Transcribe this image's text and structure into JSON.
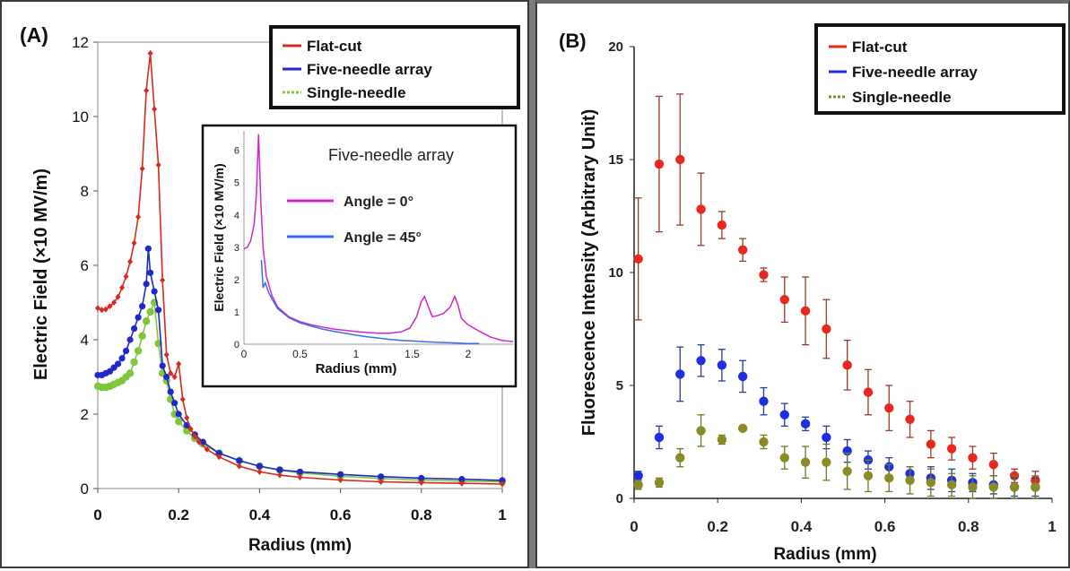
{
  "chart_data": [
    {
      "type": "line",
      "panel_label": "(A)",
      "xlabel": "Radius (mm)",
      "ylabel": "Electric Field (×10 MV/m)",
      "xlim": [
        0,
        1
      ],
      "ylim": [
        0,
        12
      ],
      "x_ticks": [
        "0",
        "0.2",
        "0.4",
        "0.6",
        "0.8",
        "1"
      ],
      "y_ticks": [
        "0",
        "2",
        "4",
        "6",
        "8",
        "10",
        "12"
      ],
      "legend_position": "top-right",
      "series": [
        {
          "name": "Flat-cut",
          "color": "#d42a20",
          "marker": "diamond",
          "points": [
            [
              0,
              4.85
            ],
            [
              0.01,
              4.8
            ],
            [
              0.02,
              4.82
            ],
            [
              0.03,
              4.9
            ],
            [
              0.04,
              5.0
            ],
            [
              0.05,
              5.15
            ],
            [
              0.06,
              5.4
            ],
            [
              0.07,
              5.7
            ],
            [
              0.08,
              6.1
            ],
            [
              0.09,
              6.6
            ],
            [
              0.1,
              7.3
            ],
            [
              0.11,
              8.6
            ],
            [
              0.12,
              10.7
            ],
            [
              0.13,
              11.7
            ],
            [
              0.14,
              10.2
            ],
            [
              0.15,
              8.7
            ],
            [
              0.16,
              5.6
            ],
            [
              0.17,
              3.6
            ],
            [
              0.18,
              3.1
            ],
            [
              0.19,
              3.0
            ],
            [
              0.2,
              3.35
            ],
            [
              0.21,
              2.4
            ],
            [
              0.22,
              1.9
            ],
            [
              0.23,
              1.6
            ],
            [
              0.24,
              1.4
            ],
            [
              0.25,
              1.25
            ],
            [
              0.27,
              1.05
            ],
            [
              0.3,
              0.85
            ],
            [
              0.35,
              0.6
            ],
            [
              0.4,
              0.45
            ],
            [
              0.45,
              0.36
            ],
            [
              0.5,
              0.3
            ],
            [
              0.6,
              0.23
            ],
            [
              0.7,
              0.18
            ],
            [
              0.8,
              0.16
            ],
            [
              0.9,
              0.14
            ],
            [
              1.0,
              0.12
            ]
          ]
        },
        {
          "name": "Five-needle array",
          "color": "#1f28c8",
          "marker": "circle",
          "points": [
            [
              0,
              3.05
            ],
            [
              0.01,
              3.05
            ],
            [
              0.02,
              3.1
            ],
            [
              0.03,
              3.15
            ],
            [
              0.04,
              3.25
            ],
            [
              0.05,
              3.35
            ],
            [
              0.06,
              3.5
            ],
            [
              0.07,
              3.7
            ],
            [
              0.08,
              4.0
            ],
            [
              0.09,
              4.3
            ],
            [
              0.1,
              4.6
            ],
            [
              0.11,
              4.9
            ],
            [
              0.12,
              5.5
            ],
            [
              0.125,
              6.45
            ],
            [
              0.13,
              5.8
            ],
            [
              0.14,
              5.3
            ],
            [
              0.15,
              4.8
            ],
            [
              0.16,
              3.3
            ],
            [
              0.17,
              3.0
            ],
            [
              0.18,
              2.6
            ],
            [
              0.19,
              2.3
            ],
            [
              0.2,
              2.0
            ],
            [
              0.22,
              1.7
            ],
            [
              0.24,
              1.45
            ],
            [
              0.26,
              1.25
            ],
            [
              0.3,
              0.95
            ],
            [
              0.35,
              0.75
            ],
            [
              0.4,
              0.6
            ],
            [
              0.45,
              0.5
            ],
            [
              0.5,
              0.45
            ],
            [
              0.6,
              0.38
            ],
            [
              0.7,
              0.32
            ],
            [
              0.8,
              0.28
            ],
            [
              0.9,
              0.25
            ],
            [
              1.0,
              0.22
            ]
          ]
        },
        {
          "name": "Single-needle",
          "color": "#7fc63a",
          "marker": "circle",
          "points": [
            [
              0,
              2.75
            ],
            [
              0.01,
              2.72
            ],
            [
              0.02,
              2.72
            ],
            [
              0.03,
              2.75
            ],
            [
              0.04,
              2.8
            ],
            [
              0.05,
              2.85
            ],
            [
              0.06,
              2.9
            ],
            [
              0.07,
              3.0
            ],
            [
              0.08,
              3.1
            ],
            [
              0.09,
              3.4
            ],
            [
              0.1,
              3.7
            ],
            [
              0.11,
              4.1
            ],
            [
              0.12,
              4.5
            ],
            [
              0.13,
              4.75
            ],
            [
              0.14,
              5.0
            ],
            [
              0.15,
              3.9
            ],
            [
              0.16,
              3.1
            ],
            [
              0.17,
              2.9
            ],
            [
              0.18,
              2.4
            ],
            [
              0.19,
              2.0
            ],
            [
              0.2,
              1.8
            ],
            [
              0.22,
              1.55
            ],
            [
              0.24,
              1.35
            ],
            [
              0.26,
              1.2
            ],
            [
              0.3,
              0.95
            ],
            [
              0.35,
              0.75
            ],
            [
              0.4,
              0.6
            ],
            [
              0.45,
              0.5
            ],
            [
              0.5,
              0.42
            ],
            [
              0.6,
              0.33
            ],
            [
              0.7,
              0.27
            ],
            [
              0.8,
              0.23
            ],
            [
              0.9,
              0.2
            ],
            [
              1.0,
              0.18
            ]
          ]
        }
      ],
      "inset": {
        "type": "line",
        "title": "Five-needle array",
        "xlabel": "Radius (mm)",
        "ylabel": "Electric Field (×10 MV/m)",
        "xlim": [
          0,
          2.4
        ],
        "ylim": [
          0,
          6.6
        ],
        "x_ticks": [
          "0",
          "0.5",
          "1",
          "1.5",
          "2"
        ],
        "y_ticks": [
          "0",
          "1",
          "2",
          "3",
          "4",
          "5",
          "6"
        ],
        "series": [
          {
            "name": "Angle = 0°",
            "color": "#d028c8",
            "points": [
              [
                0,
                2.95
              ],
              [
                0.03,
                3.0
              ],
              [
                0.06,
                3.2
              ],
              [
                0.09,
                3.7
              ],
              [
                0.11,
                4.6
              ],
              [
                0.13,
                6.5
              ],
              [
                0.15,
                4.4
              ],
              [
                0.17,
                3.0
              ],
              [
                0.2,
                2.1
              ],
              [
                0.25,
                1.5
              ],
              [
                0.3,
                1.15
              ],
              [
                0.4,
                0.85
              ],
              [
                0.5,
                0.7
              ],
              [
                0.6,
                0.6
              ],
              [
                0.7,
                0.53
              ],
              [
                0.8,
                0.47
              ],
              [
                0.9,
                0.43
              ],
              [
                1.0,
                0.39
              ],
              [
                1.1,
                0.36
              ],
              [
                1.2,
                0.34
              ],
              [
                1.3,
                0.34
              ],
              [
                1.4,
                0.38
              ],
              [
                1.48,
                0.5
              ],
              [
                1.54,
                0.85
              ],
              [
                1.58,
                1.3
              ],
              [
                1.61,
                1.48
              ],
              [
                1.64,
                1.2
              ],
              [
                1.68,
                0.85
              ],
              [
                1.72,
                0.88
              ],
              [
                1.78,
                0.95
              ],
              [
                1.84,
                1.15
              ],
              [
                1.88,
                1.48
              ],
              [
                1.91,
                1.2
              ],
              [
                1.94,
                0.8
              ],
              [
                2.0,
                0.6
              ],
              [
                2.1,
                0.4
              ],
              [
                2.2,
                0.22
              ],
              [
                2.3,
                0.12
              ],
              [
                2.4,
                0.08
              ]
            ]
          },
          {
            "name": "Angle = 45°",
            "color": "#3a6ee8",
            "points": [
              [
                0.155,
                2.6
              ],
              [
                0.17,
                1.75
              ],
              [
                0.19,
                1.9
              ],
              [
                0.22,
                1.6
              ],
              [
                0.25,
                1.4
              ],
              [
                0.3,
                1.1
              ],
              [
                0.4,
                0.82
              ],
              [
                0.5,
                0.66
              ],
              [
                0.6,
                0.56
              ],
              [
                0.7,
                0.47
              ],
              [
                0.8,
                0.4
              ],
              [
                0.9,
                0.34
              ],
              [
                1.0,
                0.28
              ],
              [
                1.1,
                0.23
              ],
              [
                1.2,
                0.19
              ],
              [
                1.3,
                0.15
              ],
              [
                1.4,
                0.12
              ],
              [
                1.5,
                0.1
              ],
              [
                1.6,
                0.08
              ],
              [
                1.7,
                0.06
              ],
              [
                1.8,
                0.05
              ],
              [
                1.9,
                0.04
              ],
              [
                2.0,
                0.02
              ],
              [
                2.1,
                0.02
              ]
            ]
          }
        ]
      }
    },
    {
      "type": "scatter",
      "panel_label": "(B)",
      "xlabel": "Radius (mm)",
      "ylabel": "Fluorescence Intensity (Arbitrary Unit)",
      "xlim": [
        0,
        1
      ],
      "ylim": [
        0,
        20
      ],
      "x_ticks": [
        "0",
        "0.2",
        "0.4",
        "0.6",
        "0.8",
        "1"
      ],
      "y_ticks": [
        "0",
        "5",
        "10",
        "15",
        "20"
      ],
      "legend_position": "top-right",
      "series": [
        {
          "name": "Flat-cut",
          "color": "#e8281e",
          "bar_color": "#9a3a2c",
          "x": [
            0.01,
            0.06,
            0.11,
            0.16,
            0.21,
            0.26,
            0.31,
            0.36,
            0.41,
            0.46,
            0.51,
            0.56,
            0.61,
            0.66,
            0.71,
            0.76,
            0.81,
            0.86,
            0.91,
            0.96
          ],
          "y": [
            10.6,
            14.8,
            15.0,
            12.8,
            12.1,
            11.0,
            9.9,
            8.8,
            8.3,
            7.5,
            5.9,
            4.7,
            4.0,
            3.5,
            2.4,
            2.2,
            1.8,
            1.5,
            1.0,
            0.8
          ],
          "err": [
            2.7,
            3.0,
            2.9,
            1.6,
            0.6,
            0.5,
            0.3,
            1.0,
            1.5,
            1.3,
            1.1,
            1.0,
            1.0,
            0.8,
            0.6,
            0.5,
            0.5,
            0.5,
            0.3,
            0.4
          ]
        },
        {
          "name": "Five-needle array",
          "color": "#1e2ee0",
          "bar_color": "#2a3a9a",
          "x": [
            0.01,
            0.06,
            0.11,
            0.16,
            0.21,
            0.26,
            0.31,
            0.36,
            0.41,
            0.46,
            0.51,
            0.56,
            0.61,
            0.66,
            0.71,
            0.76,
            0.81,
            0.86,
            0.91,
            0.96
          ],
          "y": [
            1.0,
            2.7,
            5.5,
            6.1,
            5.9,
            5.4,
            4.3,
            3.7,
            3.3,
            2.7,
            2.1,
            1.7,
            1.4,
            1.1,
            0.9,
            0.8,
            0.7,
            0.6,
            0.5,
            0.5
          ],
          "err": [
            0.2,
            0.5,
            1.2,
            0.7,
            0.7,
            0.7,
            0.6,
            0.5,
            0.3,
            0.5,
            0.5,
            0.4,
            0.4,
            0.3,
            0.5,
            0.5,
            0.4,
            0.4,
            0.4,
            0.4
          ]
        },
        {
          "name": "Single-needle",
          "color": "#8a8a26",
          "bar_color": "#6a7a2a",
          "x": [
            0.01,
            0.06,
            0.11,
            0.16,
            0.21,
            0.26,
            0.31,
            0.36,
            0.41,
            0.46,
            0.51,
            0.56,
            0.61,
            0.66,
            0.71,
            0.76,
            0.81,
            0.86,
            0.91,
            0.96
          ],
          "y": [
            0.6,
            0.7,
            1.8,
            3.0,
            2.6,
            3.1,
            2.5,
            1.8,
            1.6,
            1.6,
            1.2,
            1.0,
            0.9,
            0.8,
            0.7,
            0.6,
            0.5,
            0.5,
            0.5,
            0.5
          ],
          "err": [
            0.2,
            0.2,
            0.4,
            0.7,
            0.2,
            0.1,
            0.3,
            0.5,
            0.7,
            0.8,
            0.8,
            0.7,
            0.6,
            0.6,
            0.6,
            0.5,
            0.5,
            0.5,
            0.5,
            0.5
          ]
        }
      ]
    }
  ]
}
